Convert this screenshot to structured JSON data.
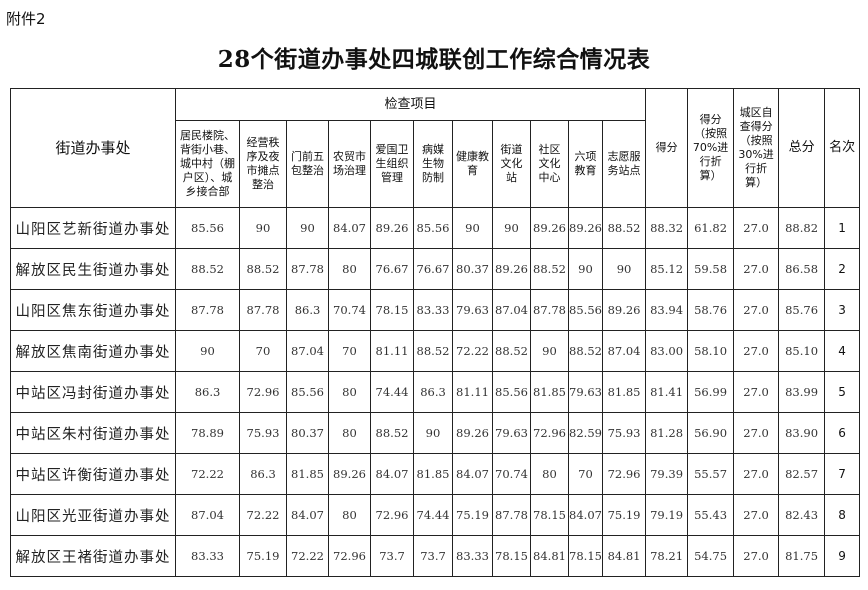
{
  "attachment_label": "附件2",
  "title": "28个街道办事处四城联创工作综合情况表",
  "headers": {
    "office": "街道办事处",
    "inspection_group": "检查项目",
    "items": [
      "居民楼院、背街小巷、城中村（棚户区）、城乡接合部",
      "经营秩序及夜市摊点整治",
      "门前五包整治",
      "农贸市场治理",
      "爱国卫生组织管理",
      "病媒生物防制",
      "健康教育",
      "街道文化站",
      "社区文化中心",
      "六项教育",
      "志愿服务站点"
    ],
    "score": "得分",
    "score70": "得分（按照70%进行折算）",
    "self30": "城区自查得分（按照30%进行折算）",
    "total": "总分",
    "rank": "名次"
  },
  "rows": [
    {
      "name": "山阳区艺新街道办事处",
      "items": [
        "85.56",
        "90",
        "90",
        "84.07",
        "89.26",
        "85.56",
        "90",
        "90",
        "89.26",
        "89.26",
        "88.52"
      ],
      "score": "88.32",
      "score70": "61.82",
      "self30": "27.0",
      "total": "88.82",
      "rank": "1"
    },
    {
      "name": "解放区民生街道办事处",
      "items": [
        "88.52",
        "88.52",
        "87.78",
        "80",
        "76.67",
        "76.67",
        "80.37",
        "89.26",
        "88.52",
        "90",
        "90"
      ],
      "score": "85.12",
      "score70": "59.58",
      "self30": "27.0",
      "total": "86.58",
      "rank": "2"
    },
    {
      "name": "山阳区焦东街道办事处",
      "items": [
        "87.78",
        "87.78",
        "86.3",
        "70.74",
        "78.15",
        "83.33",
        "79.63",
        "87.04",
        "87.78",
        "85.56",
        "89.26"
      ],
      "score": "83.94",
      "score70": "58.76",
      "self30": "27.0",
      "total": "85.76",
      "rank": "3"
    },
    {
      "name": "解放区焦南街道办事处",
      "items": [
        "90",
        "70",
        "87.04",
        "70",
        "81.11",
        "88.52",
        "72.22",
        "88.52",
        "90",
        "88.52",
        "87.04"
      ],
      "score": "83.00",
      "score70": "58.10",
      "self30": "27.0",
      "total": "85.10",
      "rank": "4"
    },
    {
      "name": "中站区冯封街道办事处",
      "items": [
        "86.3",
        "72.96",
        "85.56",
        "80",
        "74.44",
        "86.3",
        "81.11",
        "85.56",
        "81.85",
        "79.63",
        "81.85"
      ],
      "score": "81.41",
      "score70": "56.99",
      "self30": "27.0",
      "total": "83.99",
      "rank": "5"
    },
    {
      "name": "中站区朱村街道办事处",
      "items": [
        "78.89",
        "75.93",
        "80.37",
        "80",
        "88.52",
        "90",
        "89.26",
        "79.63",
        "72.96",
        "82.59",
        "75.93"
      ],
      "score": "81.28",
      "score70": "56.90",
      "self30": "27.0",
      "total": "83.90",
      "rank": "6"
    },
    {
      "name": "中站区许衡街道办事处",
      "items": [
        "72.22",
        "86.3",
        "81.85",
        "89.26",
        "84.07",
        "81.85",
        "84.07",
        "70.74",
        "80",
        "70",
        "72.96"
      ],
      "score": "79.39",
      "score70": "55.57",
      "self30": "27.0",
      "total": "82.57",
      "rank": "7"
    },
    {
      "name": "山阳区光亚街道办事处",
      "items": [
        "87.04",
        "72.22",
        "84.07",
        "80",
        "72.96",
        "74.44",
        "75.19",
        "87.78",
        "78.15",
        "84.07",
        "75.19"
      ],
      "score": "79.19",
      "score70": "55.43",
      "self30": "27.0",
      "total": "82.43",
      "rank": "8"
    },
    {
      "name": "解放区王褚街道办事处",
      "items": [
        "83.33",
        "75.19",
        "72.22",
        "72.96",
        "73.7",
        "73.7",
        "83.33",
        "78.15",
        "84.81",
        "78.15",
        "84.81"
      ],
      "score": "78.21",
      "score70": "54.75",
      "self30": "27.0",
      "total": "81.75",
      "rank": "9"
    }
  ]
}
